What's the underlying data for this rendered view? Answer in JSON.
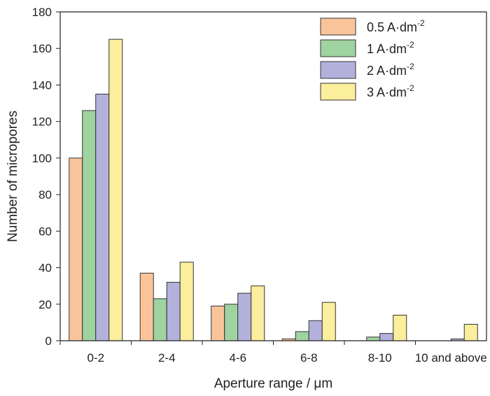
{
  "chart_data": {
    "type": "bar",
    "categories": [
      "0-2",
      "2-4",
      "4-6",
      "6-8",
      "8-10",
      "10 and above"
    ],
    "series": [
      {
        "name": "0.5 A·dm-2",
        "label_base": "0.5 A·dm",
        "label_sup": "-2",
        "color": "#f9c49a",
        "values": [
          100,
          37,
          19,
          1,
          0,
          0
        ]
      },
      {
        "name": "1 A·dm-2",
        "label_base": "1 A·dm",
        "label_sup": "-2",
        "color": "#9fd3a0",
        "values": [
          126,
          23,
          20,
          5,
          2,
          0
        ]
      },
      {
        "name": "2 A·dm-2",
        "label_base": "2 A·dm",
        "label_sup": "-2",
        "color": "#b3b1dc",
        "values": [
          135,
          32,
          26,
          11,
          4,
          1
        ]
      },
      {
        "name": "3 A·dm-2",
        "label_base": "3 A·dm",
        "label_sup": "-2",
        "color": "#fbee9c",
        "values": [
          165,
          43,
          30,
          21,
          14,
          9
        ]
      }
    ],
    "xlabel": "Aperture range / μm",
    "ylabel": "Number of micropores",
    "ylim": [
      0,
      180
    ],
    "yticks": [
      0,
      20,
      40,
      60,
      80,
      100,
      120,
      140,
      160,
      180
    ],
    "grid": false,
    "legend_position": "top-right"
  }
}
